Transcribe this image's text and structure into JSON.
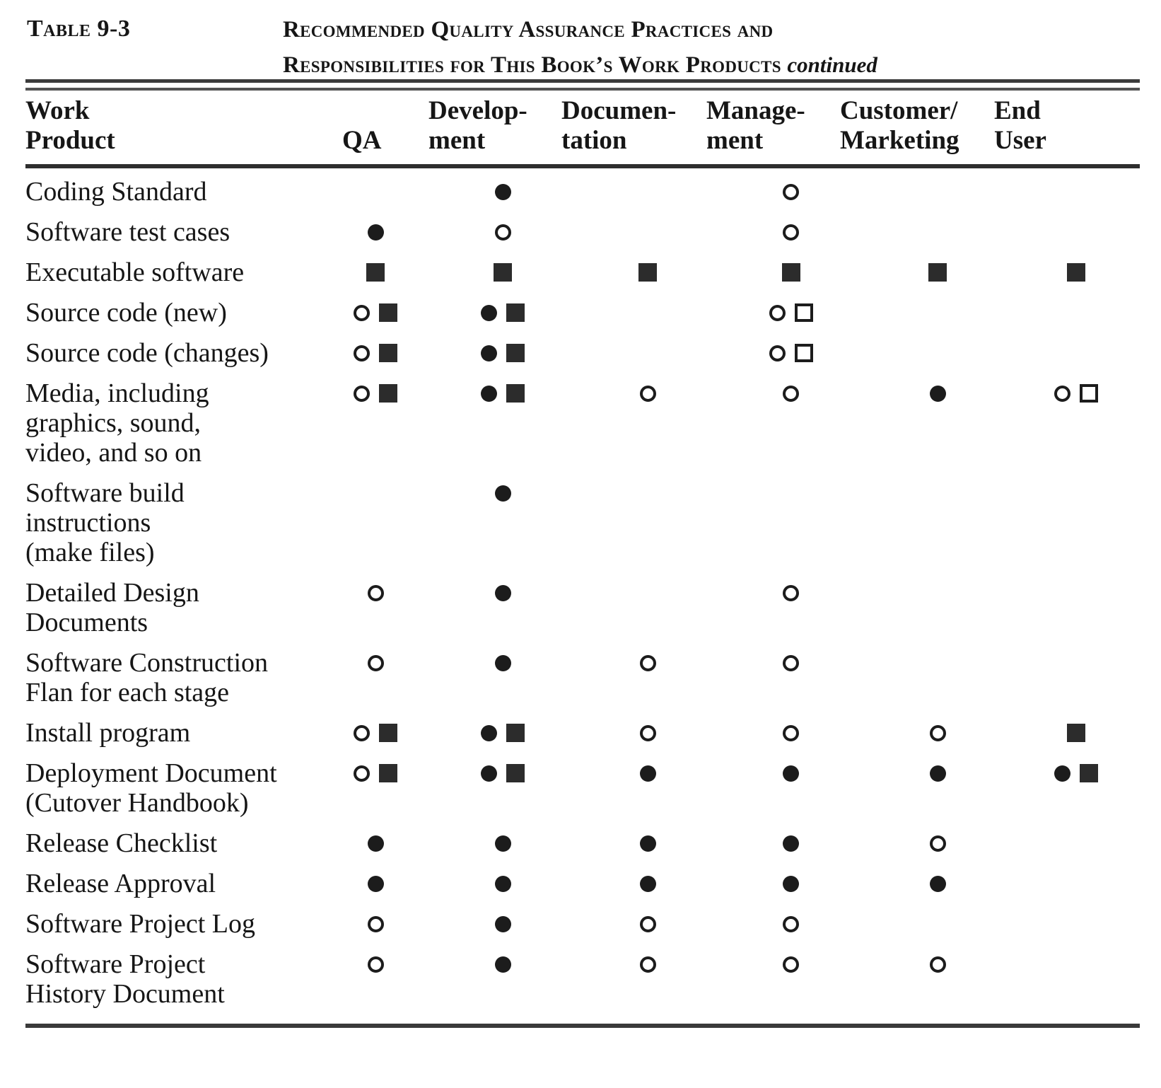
{
  "header_block": {
    "table_label": "Table 9-3",
    "title_line1": "Recommended Quality Assurance Practices and",
    "title_line2": "Responsibilities for This Book’s Work Products",
    "title_continued": "continued"
  },
  "table": {
    "columns": [
      {
        "label": "Work\nProduct"
      },
      {
        "label": "QA"
      },
      {
        "label": "Develop-\nment"
      },
      {
        "label": "Documen-\ntation"
      },
      {
        "label": "Manage-\nment"
      },
      {
        "label": "Customer/\nMarketing"
      },
      {
        "label": "End\nUser"
      }
    ],
    "symbols_legend": {
      "filled-circle": "●",
      "open-circle": "○",
      "filled-square": "■",
      "open-square": "□"
    },
    "rows": [
      {
        "label": "Coding Standard",
        "cells": [
          [],
          [
            "filled-circle"
          ],
          [],
          [
            "open-circle"
          ],
          [],
          []
        ]
      },
      {
        "label": "Software test cases",
        "cells": [
          [
            "filled-circle"
          ],
          [
            "open-circle"
          ],
          [],
          [
            "open-circle"
          ],
          [],
          []
        ]
      },
      {
        "label": "Executable software",
        "cells": [
          [
            "filled-square"
          ],
          [
            "filled-square"
          ],
          [
            "filled-square"
          ],
          [
            "filled-square"
          ],
          [
            "filled-square"
          ],
          [
            "filled-square"
          ]
        ]
      },
      {
        "label": "Source code (new)",
        "cells": [
          [
            "open-circle",
            "filled-square"
          ],
          [
            "filled-circle",
            "filled-square"
          ],
          [],
          [
            "open-circle",
            "open-square"
          ],
          [],
          []
        ]
      },
      {
        "label": "Source code (changes)",
        "cells": [
          [
            "open-circle",
            "filled-square"
          ],
          [
            "filled-circle",
            "filled-square"
          ],
          [],
          [
            "open-circle",
            "open-square"
          ],
          [],
          []
        ]
      },
      {
        "label": "Media, including\ngraphics, sound,\nvideo, and so on",
        "cells": [
          [
            "open-circle",
            "filled-square"
          ],
          [
            "filled-circle",
            "filled-square"
          ],
          [
            "open-circle"
          ],
          [
            "open-circle"
          ],
          [
            "filled-circle"
          ],
          [
            "open-circle",
            "open-square"
          ]
        ]
      },
      {
        "label": "Software  build\ninstructions\n(make files)",
        "cells": [
          [],
          [
            "filled-circle"
          ],
          [],
          [],
          [],
          []
        ]
      },
      {
        "label": "Detailed  Design\nDocuments",
        "cells": [
          [
            "open-circle"
          ],
          [
            "filled-circle"
          ],
          [],
          [
            "open-circle"
          ],
          [],
          []
        ]
      },
      {
        "label": "Software   Construction\nFlan for each stage",
        "cells": [
          [
            "open-circle"
          ],
          [
            "filled-circle"
          ],
          [
            "open-circle"
          ],
          [
            "open-circle"
          ],
          [],
          []
        ]
      },
      {
        "label": "Install program",
        "cells": [
          [
            "open-circle",
            "filled-square"
          ],
          [
            "filled-circle",
            "filled-square"
          ],
          [
            "open-circle"
          ],
          [
            "open-circle"
          ],
          [
            "open-circle"
          ],
          [
            "filled-square"
          ]
        ]
      },
      {
        "label": "Deployment Document\n(Cutover  Handbook)",
        "cells": [
          [
            "open-circle",
            "filled-square"
          ],
          [
            "filled-circle",
            "filled-square"
          ],
          [
            "filled-circle"
          ],
          [
            "filled-circle"
          ],
          [
            "filled-circle"
          ],
          [
            "filled-circle",
            "filled-square"
          ]
        ]
      },
      {
        "label": "Release  Checklist",
        "cells": [
          [
            "filled-circle"
          ],
          [
            "filled-circle"
          ],
          [
            "filled-circle"
          ],
          [
            "filled-circle"
          ],
          [
            "open-circle"
          ],
          []
        ]
      },
      {
        "label": "Release   Approval",
        "cells": [
          [
            "filled-circle"
          ],
          [
            "filled-circle"
          ],
          [
            "filled-circle"
          ],
          [
            "filled-circle"
          ],
          [
            "filled-circle"
          ],
          []
        ]
      },
      {
        "label": "Software  Project Log",
        "cells": [
          [
            "open-circle"
          ],
          [
            "filled-circle"
          ],
          [
            "open-circle"
          ],
          [
            "open-circle"
          ],
          [],
          []
        ]
      },
      {
        "label": "Software  Project\nHistory Document",
        "cells": [
          [
            "open-circle"
          ],
          [
            "filled-circle"
          ],
          [
            "open-circle"
          ],
          [
            "open-circle"
          ],
          [
            "open-circle"
          ],
          []
        ]
      }
    ]
  }
}
